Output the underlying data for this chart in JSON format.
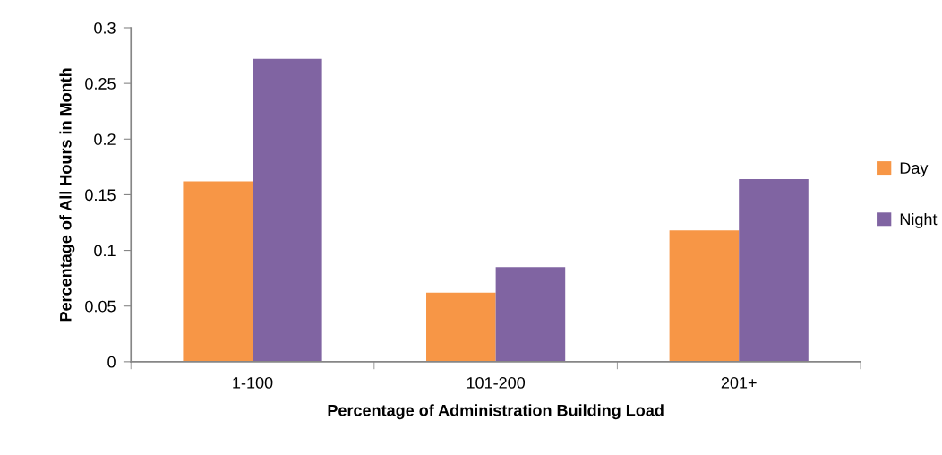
{
  "chart_data": {
    "type": "bar",
    "xlabel": "Percentage of Administration Building Load",
    "ylabel": "Percentage of All Hours in Month",
    "categories": [
      "1-100",
      "101-200",
      "201+"
    ],
    "series": [
      {
        "name": "Day",
        "color": "#f79646",
        "values": [
          0.162,
          0.062,
          0.118
        ]
      },
      {
        "name": "Night",
        "color": "#8064a2",
        "values": [
          0.272,
          0.085,
          0.164
        ]
      }
    ],
    "ylim": [
      0,
      0.3
    ],
    "yticks": [
      0,
      0.05,
      0.1,
      0.15,
      0.2,
      0.25,
      0.3
    ],
    "grid": false,
    "legend": "right"
  }
}
